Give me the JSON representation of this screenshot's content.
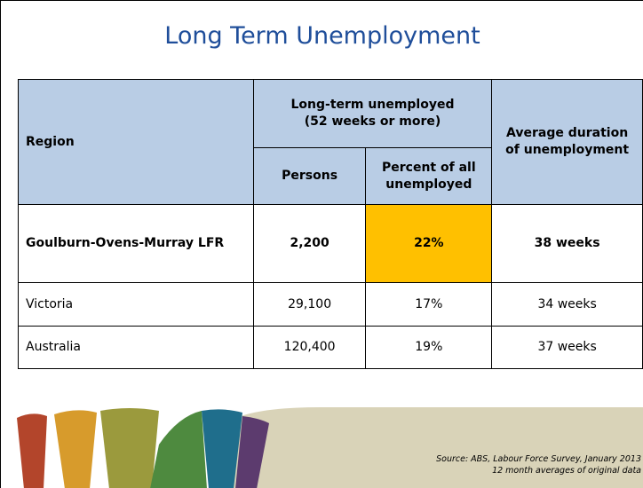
{
  "title": "Long Term Unemployment",
  "table": {
    "header": {
      "region": "Region",
      "group": [
        "Long-term unemployed",
        "(52 weeks or more)"
      ],
      "persons": "Persons",
      "percent": [
        "Percent of all",
        "unemployed"
      ],
      "duration": [
        "Average duration",
        "of unemployment"
      ]
    },
    "rows": [
      [
        "Goulburn-Ovens-Murray LFR",
        "2,200",
        "22%",
        "38 weeks"
      ],
      [
        "Victoria",
        "29,100",
        "17%",
        "34 weeks"
      ],
      [
        "Australia",
        "120,400",
        "19%",
        "37 weeks"
      ]
    ]
  },
  "source": [
    "Source: ABS, Labour Force Survey, January 2013",
    "12 month averages of original data"
  ]
}
